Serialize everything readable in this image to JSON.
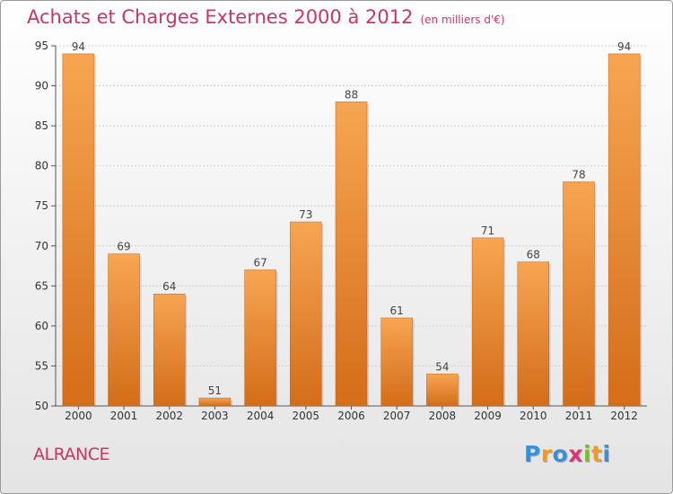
{
  "header": {
    "title": "Achats et Charges Externes 2000 à 2012",
    "unit": "(en milliers d'€)"
  },
  "location": "ALRANCE",
  "brand": {
    "name": "Proxiti",
    "letters": [
      {
        "ch": "P",
        "color": "#3b8fd6"
      },
      {
        "ch": "r",
        "color": "#f39a1e"
      },
      {
        "ch": "o",
        "color": "#3b8fd6"
      },
      {
        "ch": "x",
        "color": "#e0327a"
      },
      {
        "ch": "i",
        "color": "#7dbb2b"
      },
      {
        "ch": "t",
        "color": "#f39a1e"
      },
      {
        "ch": "i",
        "color": "#3b8fd6"
      }
    ]
  },
  "colors": {
    "title": "#cc3366",
    "bar_light": "#f7a552",
    "bar_dark": "#d36d19",
    "axis": "#555555",
    "grid": "#d0d0d0"
  },
  "chart_data": {
    "type": "bar",
    "title": "Achats et Charges Externes 2000 à 2012",
    "categories": [
      "2000",
      "2001",
      "2002",
      "2003",
      "2004",
      "2005",
      "2006",
      "2007",
      "2008",
      "2009",
      "2010",
      "2011",
      "2012"
    ],
    "values": [
      94,
      69,
      64,
      51,
      67,
      73,
      88,
      61,
      54,
      71,
      68,
      78,
      94
    ],
    "ylim": [
      50,
      95
    ],
    "yticks": [
      50,
      55,
      60,
      65,
      70,
      75,
      80,
      85,
      90,
      95
    ],
    "grid": true,
    "legend": "none",
    "xlabel": "",
    "ylabel": ""
  }
}
